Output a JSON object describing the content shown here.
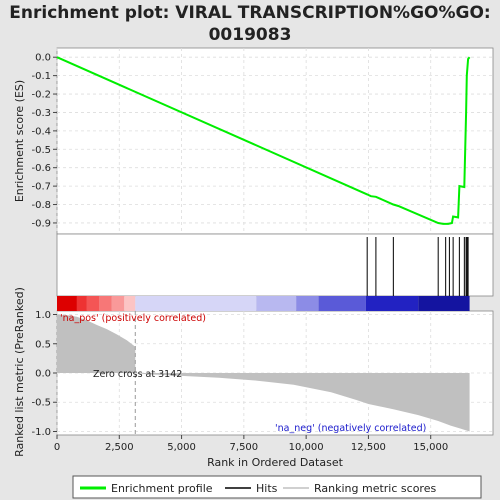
{
  "title_lines": [
    "Enrichment plot: VIRAL TRANSCRIPTION%GO%GO:",
    "0019083"
  ],
  "chart_data": {
    "type": "line",
    "x_label": "Rank in Ordered Dataset",
    "y_label_top": "Enrichment score (ES)",
    "y_label_bottom": "Ranked list metric (PreRanked)",
    "x_range": [
      0,
      17500
    ],
    "es_range": [
      -0.96,
      0.05
    ],
    "metric_range": [
      -1.06,
      1.06
    ],
    "x_ticks": [
      {
        "value": 0,
        "label": "0"
      },
      {
        "value": 2500,
        "label": "2,500"
      },
      {
        "value": 5000,
        "label": "5,000"
      },
      {
        "value": 7500,
        "label": "7,500"
      },
      {
        "value": 10000,
        "label": "10,000"
      },
      {
        "value": 12500,
        "label": "12,500"
      },
      {
        "value": 15000,
        "label": "15,000"
      }
    ],
    "es_ticks": [
      {
        "value": 0.0,
        "label": "0.0"
      },
      {
        "value": -0.1,
        "label": "-0.1"
      },
      {
        "value": -0.2,
        "label": "-0.2"
      },
      {
        "value": -0.3,
        "label": "-0.3"
      },
      {
        "value": -0.4,
        "label": "-0.4"
      },
      {
        "value": -0.5,
        "label": "-0.5"
      },
      {
        "value": -0.6,
        "label": "-0.6"
      },
      {
        "value": -0.7,
        "label": "-0.7"
      },
      {
        "value": -0.8,
        "label": "-0.8"
      },
      {
        "value": -0.9,
        "label": "-0.9"
      }
    ],
    "metric_ticks": [
      {
        "value": 1.0,
        "label": "1.0"
      },
      {
        "value": 0.5,
        "label": "0.5"
      },
      {
        "value": 0.0,
        "label": "0.0"
      },
      {
        "value": -0.5,
        "label": "-0.5"
      },
      {
        "value": -1.0,
        "label": "-1.0"
      }
    ],
    "enrichment_profile": {
      "name": "Enrichment profile",
      "color": "#00ee00",
      "points": [
        [
          0,
          0.0
        ],
        [
          12450,
          -0.745
        ],
        [
          12600,
          -0.755
        ],
        [
          12800,
          -0.758
        ],
        [
          13500,
          -0.8
        ],
        [
          13700,
          -0.808
        ],
        [
          15300,
          -0.9
        ],
        [
          15500,
          -0.905
        ],
        [
          15700,
          -0.905
        ],
        [
          15850,
          -0.9
        ],
        [
          15900,
          -0.865
        ],
        [
          16100,
          -0.87
        ],
        [
          16150,
          -0.7
        ],
        [
          16350,
          -0.705
        ],
        [
          16420,
          -0.3
        ],
        [
          16450,
          -0.1
        ],
        [
          16500,
          -0.01
        ],
        [
          16560,
          0.0
        ]
      ]
    },
    "hits": [
      12450,
      12800,
      13500,
      15300,
      15600,
      15750,
      15900,
      16150,
      16350,
      16420,
      16460,
      16500
    ],
    "metric_profile": [
      [
        0,
        1.0
      ],
      [
        400,
        0.99
      ],
      [
        800,
        0.96
      ],
      [
        1200,
        0.9
      ],
      [
        1600,
        0.82
      ],
      [
        2000,
        0.75
      ],
      [
        2400,
        0.66
      ],
      [
        2800,
        0.56
      ],
      [
        3142,
        0.45
      ],
      [
        3142,
        0.0
      ],
      [
        3600,
        -0.02
      ],
      [
        5000,
        -0.05
      ],
      [
        6500,
        -0.08
      ],
      [
        8000,
        -0.13
      ],
      [
        9500,
        -0.2
      ],
      [
        11000,
        -0.33
      ],
      [
        12000,
        -0.46
      ],
      [
        12500,
        -0.53
      ],
      [
        13500,
        -0.62
      ],
      [
        14500,
        -0.72
      ],
      [
        15300,
        -0.82
      ],
      [
        15800,
        -0.9
      ],
      [
        16200,
        -0.95
      ],
      [
        16560,
        -1.0
      ]
    ],
    "zero_cross": {
      "value": 3142,
      "label": "Zero cross at 3142"
    },
    "pos_label": "'na_pos' (positively correlated)",
    "neg_label": "'na_neg' (negatively correlated)",
    "ranking_band": [
      {
        "from": 0,
        "to": 800,
        "color": "#dd0000"
      },
      {
        "from": 800,
        "to": 1200,
        "color": "#ee3333"
      },
      {
        "from": 1200,
        "to": 1700,
        "color": "#f45555"
      },
      {
        "from": 1700,
        "to": 2200,
        "color": "#f77777"
      },
      {
        "from": 2200,
        "to": 2700,
        "color": "#f99999"
      },
      {
        "from": 2700,
        "to": 3142,
        "color": "#fcc4c4"
      },
      {
        "from": 3142,
        "to": 8000,
        "color": "#d6d6f7"
      },
      {
        "from": 8000,
        "to": 9600,
        "color": "#b8b8f0"
      },
      {
        "from": 9600,
        "to": 10500,
        "color": "#8c8ce6"
      },
      {
        "from": 10500,
        "to": 12400,
        "color": "#5a5ad8"
      },
      {
        "from": 12400,
        "to": 14500,
        "color": "#2222c2"
      },
      {
        "from": 14500,
        "to": 16560,
        "color": "#1414a0"
      }
    ],
    "legend": [
      {
        "label": "Enrichment profile",
        "color": "#00ee00",
        "kind": "line"
      },
      {
        "label": "Hits",
        "color": "#000000",
        "kind": "line"
      },
      {
        "label": "Ranking metric scores",
        "color": "#c0c0c0",
        "kind": "line"
      }
    ]
  }
}
